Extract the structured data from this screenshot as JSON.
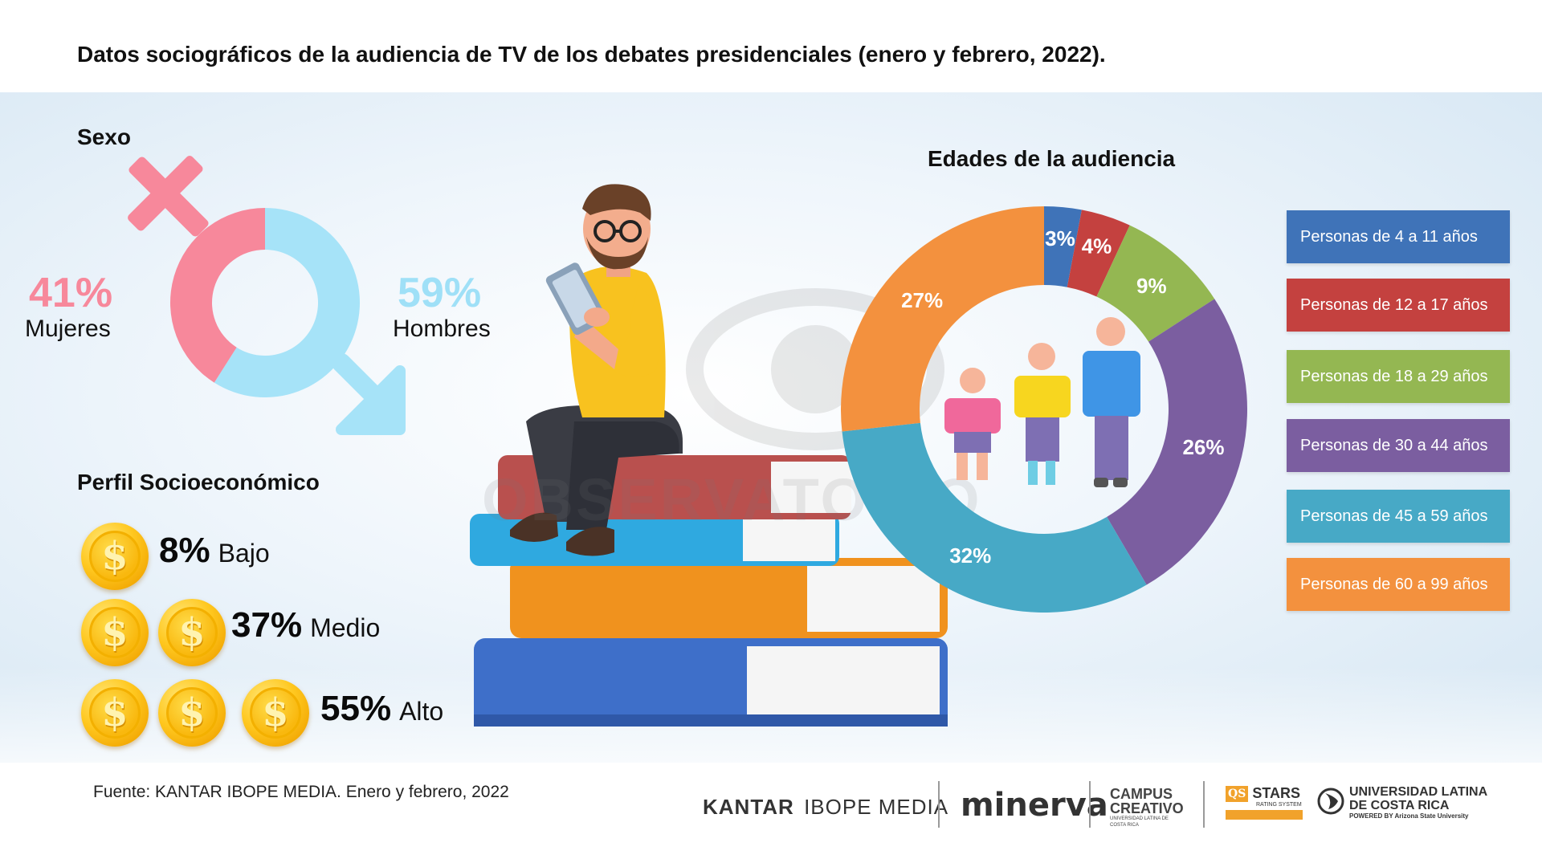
{
  "title": "Datos sociográficos de la audiencia de TV de los debates presidenciales (enero y febrero, 2022).",
  "sexo": {
    "heading": "Sexo",
    "women": {
      "pct": "41%",
      "label": "Mujeres",
      "color": "#f7889b"
    },
    "men": {
      "pct": "59%",
      "label": "Hombres",
      "color": "#a6e3f8"
    }
  },
  "socioeconomico": {
    "heading": "Perfil Socioeconómico",
    "rows": [
      {
        "pct": "8%",
        "label": "Bajo",
        "coins": 1
      },
      {
        "pct": "37%",
        "label": "Medio",
        "coins": 2
      },
      {
        "pct": "55%",
        "label": "Alto",
        "coins": 3
      }
    ]
  },
  "watermark": "OBSERVATORIO",
  "edades": {
    "heading": "Edades de la audiencia"
  },
  "chart_data": [
    {
      "type": "pie",
      "title": "Sexo",
      "categories": [
        "Mujeres",
        "Hombres"
      ],
      "values": [
        41,
        59
      ],
      "colors": [
        "#f7889b",
        "#a6e3f8"
      ]
    },
    {
      "type": "pie",
      "title": "Edades de la audiencia",
      "categories": [
        "Personas de 4 a 11 años",
        "Personas de 12 a 17 años",
        "Personas de 18 a 29 años",
        "Personas de 30 a 44 años",
        "Personas de 45 a 59 años",
        "Personas de 60 a 99 años"
      ],
      "values": [
        3,
        4,
        9,
        26,
        32,
        27
      ],
      "labels": [
        "3%",
        "4%",
        "9%",
        "26%",
        "32%",
        "27%"
      ],
      "colors": [
        "#3f73b8",
        "#c4413f",
        "#94b752",
        "#7b5ea0",
        "#47a9c6",
        "#f3913e"
      ],
      "legend": "right"
    }
  ],
  "source": "Fuente: KANTAR IBOPE MEDIA. Enero y febrero, 2022",
  "logos": {
    "kantar": "KANTAR",
    "ibope": "IBOPE MEDIA",
    "minerva": "minerva",
    "campus_1": "CAMPUS",
    "campus_2": "CREATIVO",
    "campus_sub": "UNIVERSIDAD LATINA DE COSTA RICA",
    "qs": "QS",
    "stars": "STARS",
    "stars_sub": "RATING SYSTEM",
    "ulatina_1": "UNIVERSIDAD LATINA",
    "ulatina_2": "DE COSTA RICA",
    "ulatina_sub": "POWERED BY Arizona State University"
  }
}
